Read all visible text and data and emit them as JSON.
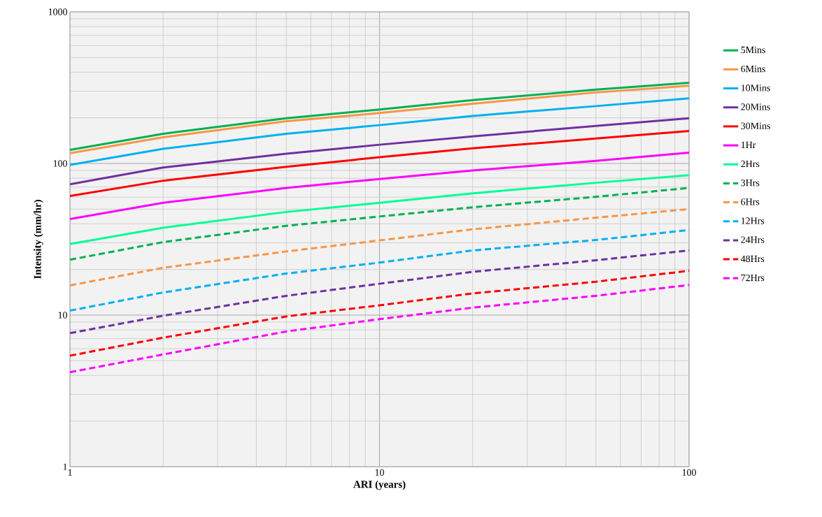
{
  "chart_data": {
    "type": "line",
    "xlabel": "ARI (years)",
    "ylabel": "Intensity (mm/hr)",
    "log": "xy",
    "grid": true,
    "legend": "right",
    "xlim": [
      1,
      100
    ],
    "ylim": [
      1,
      1000
    ],
    "xticks": [
      1,
      10,
      100
    ],
    "yticks": [
      1,
      10,
      100,
      1000
    ],
    "x": [
      1,
      2,
      5,
      10,
      20,
      50,
      100
    ],
    "series": [
      {
        "name": "5Mins",
        "color": "#00b050",
        "line_style": "solid",
        "values": [
          123,
          157,
          199,
          227,
          262,
          307,
          341
        ]
      },
      {
        "name": "6Mins",
        "color": "#f79646",
        "line_style": "solid",
        "values": [
          117,
          149,
          190,
          215,
          248,
          294,
          326
        ]
      },
      {
        "name": "10Mins",
        "color": "#00b0f0",
        "line_style": "solid",
        "values": [
          98,
          125,
          157,
          179,
          206,
          239,
          269
        ]
      },
      {
        "name": "20Mins",
        "color": "#7030a0",
        "line_style": "solid",
        "values": [
          73,
          94,
          116,
          133,
          151,
          177,
          199
        ]
      },
      {
        "name": "30Mins",
        "color": "#ff0000",
        "line_style": "solid",
        "values": [
          61,
          77,
          95,
          110,
          126,
          146,
          164
        ]
      },
      {
        "name": "1Hr",
        "color": "#ff00ff",
        "line_style": "solid",
        "values": [
          43,
          55,
          69,
          79,
          90,
          104,
          118
        ]
      },
      {
        "name": "2Hrs",
        "color": "#00ff96",
        "line_style": "solid",
        "values": [
          29.4,
          37.7,
          47.9,
          55,
          63.6,
          74.6,
          83.8
        ]
      },
      {
        "name": "3Hrs",
        "color": "#00b050",
        "line_style": "dashed",
        "values": [
          23.2,
          30.3,
          38.8,
          44.7,
          51.4,
          60.3,
          69
        ]
      },
      {
        "name": "6Hrs",
        "color": "#f79646",
        "line_style": "dashed",
        "values": [
          15.7,
          20.5,
          26.3,
          31.1,
          36.8,
          43.9,
          50
        ]
      },
      {
        "name": "12Hrs",
        "color": "#00b0f0",
        "line_style": "dashed",
        "values": [
          10.7,
          14.1,
          18.8,
          22.2,
          26.7,
          31.3,
          36.4
        ]
      },
      {
        "name": "24Hrs",
        "color": "#7030a0",
        "line_style": "dashed",
        "values": [
          7.6,
          9.9,
          13.4,
          16.1,
          19.3,
          23,
          26.7
        ]
      },
      {
        "name": "48Hrs",
        "color": "#ff0000",
        "line_style": "dashed",
        "values": [
          5.4,
          7.1,
          9.8,
          11.6,
          13.9,
          16.6,
          19.6
        ]
      },
      {
        "name": "72Hrs",
        "color": "#ff00ff",
        "line_style": "dashed",
        "values": [
          4.2,
          5.5,
          7.8,
          9.4,
          11.2,
          13.4,
          15.8
        ]
      }
    ]
  }
}
